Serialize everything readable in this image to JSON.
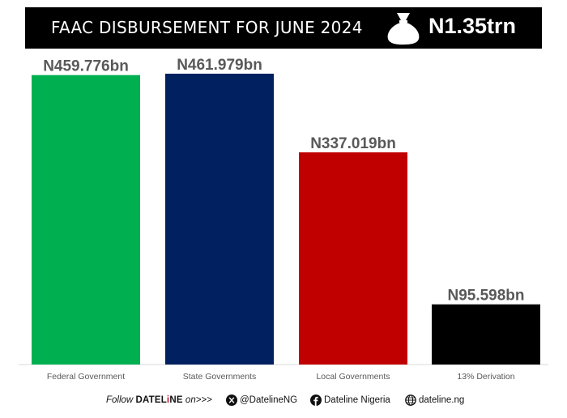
{
  "banner": {
    "title": "FAAC DISBURSEMENT FOR JUNE 2024",
    "total": "N1.35trn",
    "icon": "money-bag-icon"
  },
  "chart_data": {
    "type": "bar",
    "categories": [
      "Federal Government",
      "State Governments",
      "Local Governments",
      "13% Derivation"
    ],
    "values": [
      459.776,
      461.979,
      337.019,
      95.598
    ],
    "data_labels": [
      "N459.776bn",
      "N461.979bn",
      "N337.019bn",
      "N95.598bn"
    ],
    "colors": [
      "#00b050",
      "#002060",
      "#c00000",
      "#000000"
    ],
    "ylim": [
      0,
      534
    ],
    "grid": false,
    "axis_line_color": "#d9d9d9",
    "label_color": "#595959"
  },
  "footer": {
    "follow_text": "Follow",
    "brand_part1": "DATEL",
    "brand_part2": "i",
    "brand_part3": "NE",
    "on_text": "on>>>",
    "twitter_icon": "x-logo-icon",
    "twitter": "@DatelineNG",
    "facebook_icon": "facebook-icon",
    "facebook": "Dateline Nigeria",
    "website_icon": "globe-icon",
    "website": "dateline.ng"
  }
}
